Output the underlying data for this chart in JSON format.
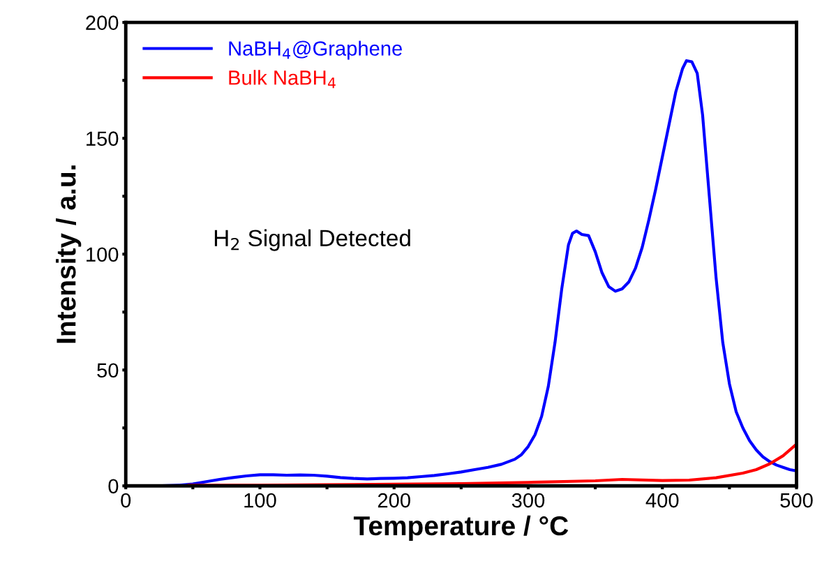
{
  "chart_data": {
    "type": "line",
    "xlabel": "Temperature / °C",
    "ylabel": "Intensity / a.u.",
    "xlim": [
      0,
      500
    ],
    "ylim": [
      0,
      200
    ],
    "xticks": [
      0,
      {
        "value": 50,
        "label": null
      },
      100,
      {
        "value": 150,
        "label": null
      },
      200,
      {
        "value": 250,
        "label": null
      },
      300,
      {
        "value": 350,
        "label": null
      },
      400,
      {
        "value": 450,
        "label": null
      },
      500
    ],
    "yticks": [
      0,
      {
        "value": 25,
        "label": null
      },
      50,
      {
        "value": 75,
        "label": null
      },
      100,
      {
        "value": 125,
        "label": null
      },
      150,
      {
        "value": 175,
        "label": null
      },
      200
    ],
    "grid": false,
    "legend": "top left",
    "marker": "none",
    "line_style": "solid",
    "annotations": [
      "H$_{2}$ Signal Detected"
    ],
    "series": [
      {
        "name": "NaBH$_{4}$@Graphene",
        "color": "#0000ff",
        "x": [
          23,
          40,
          50,
          60,
          70,
          80,
          90,
          100,
          110,
          120,
          130,
          140,
          150,
          160,
          170,
          180,
          190,
          200,
          210,
          220,
          230,
          240,
          250,
          260,
          270,
          280,
          290,
          295,
          300,
          305,
          310,
          315,
          320,
          325,
          330,
          333,
          336,
          340,
          345,
          350,
          355,
          360,
          365,
          370,
          375,
          380,
          385,
          390,
          395,
          400,
          405,
          410,
          415,
          418,
          422,
          426,
          430,
          435,
          440,
          445,
          450,
          455,
          460,
          465,
          470,
          475,
          480,
          485,
          490,
          495,
          500
        ],
        "values": [
          0,
          0.3,
          0.8,
          1.8,
          2.8,
          3.6,
          4.3,
          4.8,
          4.8,
          4.6,
          4.7,
          4.6,
          4.2,
          3.6,
          3.2,
          3.0,
          3.2,
          3.3,
          3.5,
          4.0,
          4.5,
          5.2,
          6.0,
          7.0,
          8.0,
          9.3,
          11.5,
          13.5,
          17,
          22,
          30,
          43,
          62,
          85,
          104,
          109,
          110,
          108.5,
          108,
          101,
          92,
          86,
          84,
          85,
          88,
          94,
          103,
          115,
          128,
          142,
          156,
          170,
          180,
          183.5,
          183,
          178,
          160,
          125,
          90,
          62,
          44,
          32,
          25,
          19.5,
          15.5,
          12.5,
          10.5,
          9,
          8,
          7,
          6.5
        ]
      },
      {
        "name": "Bulk NaBH$_{4}$",
        "color": "#ff0000",
        "x": [
          47,
          100,
          150,
          200,
          250,
          300,
          350,
          370,
          400,
          420,
          440,
          460,
          470,
          480,
          490,
          500
        ],
        "values": [
          0.3,
          0.3,
          0.5,
          0.7,
          1.0,
          1.5,
          2.2,
          2.8,
          2.3,
          2.5,
          3.5,
          5.5,
          7,
          9.5,
          13,
          18
        ]
      }
    ]
  }
}
